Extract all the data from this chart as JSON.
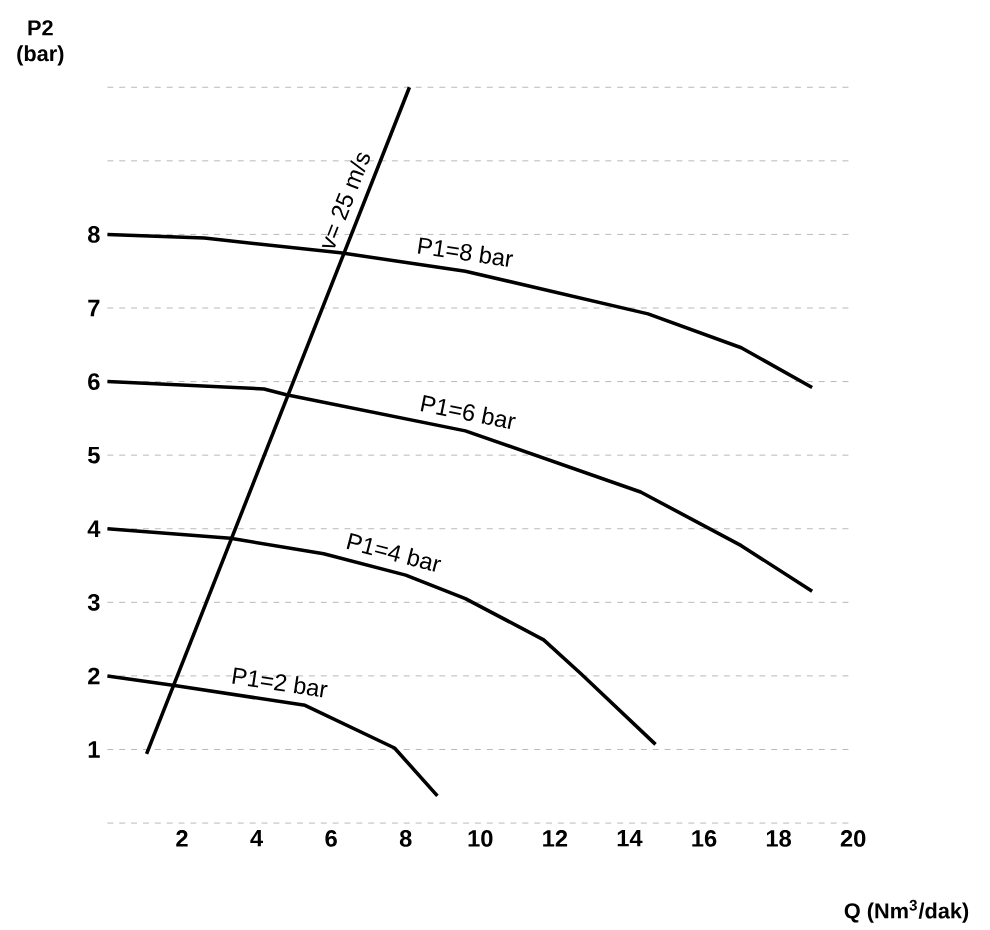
{
  "chart_data": {
    "type": "line",
    "xlabel": "Q (Nm$^{3}$/dak)",
    "ylabel": "P2 (bar)",
    "xlim": [
      0,
      20
    ],
    "ylim": [
      0,
      10
    ],
    "xticks": [
      2,
      4,
      6,
      8,
      10,
      12,
      14,
      16,
      18,
      20
    ],
    "yticks": [
      {
        "value": 0,
        "label": null
      },
      1,
      2,
      3,
      4,
      5,
      6,
      7,
      8,
      {
        "value": 9,
        "label": null
      },
      {
        "value": 10,
        "label": null
      }
    ],
    "grid": "y",
    "marker": "none",
    "line_style": "solid",
    "series": [
      {
        "name": "P1=8 bar",
        "color": "#000000",
        "x": [
          0,
          2.6,
          6.25,
          9.6,
          14.5,
          17.0,
          18.9
        ],
        "values": [
          8.0,
          7.95,
          7.75,
          7.5,
          6.92,
          6.46,
          5.92
        ]
      },
      {
        "name": "P1=6 bar",
        "color": "#000000",
        "x": [
          0,
          4.2,
          4.8,
          9.6,
          14.3,
          17.0,
          18.9
        ],
        "values": [
          6.0,
          5.9,
          5.82,
          5.33,
          4.5,
          3.77,
          3.15
        ]
      },
      {
        "name": "P1=4 bar",
        "color": "#000000",
        "x": [
          0,
          3.3,
          5.8,
          8.0,
          9.6,
          11.7,
          12.7,
          14.7
        ],
        "values": [
          4.0,
          3.87,
          3.66,
          3.37,
          3.05,
          2.49,
          2.03,
          1.07
        ]
      },
      {
        "name": "P1=2 bar",
        "color": "#000000",
        "x": [
          0,
          1.8,
          5.3,
          7.7,
          8.85
        ],
        "values": [
          2.0,
          1.87,
          1.6,
          1.02,
          0.37
        ]
      },
      {
        "name": "v= 25 m/s",
        "color": "#000000",
        "x": [
          1.05,
          8.1
        ],
        "values": [
          0.94,
          10.0
        ]
      }
    ]
  }
}
